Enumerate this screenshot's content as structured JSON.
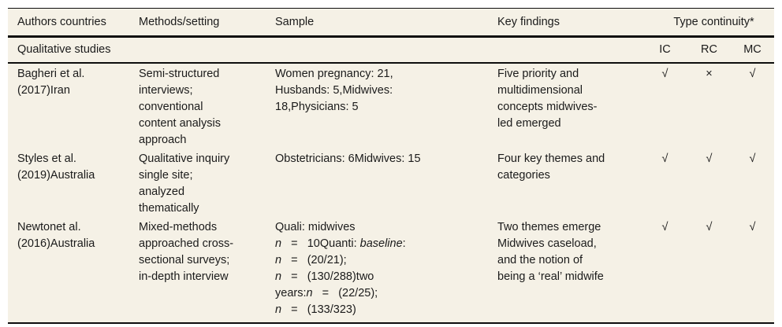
{
  "table": {
    "header": {
      "authors": "Authors countries",
      "methods": "Methods/setting",
      "sample": "Sample",
      "findings": "Key findings",
      "continuity_group": "Type continuity*"
    },
    "subheader": {
      "section_label": "Qualitative studies",
      "ic": "IC",
      "rc": "RC",
      "mc": "MC"
    },
    "rows": [
      {
        "authors": "Bagheri et al.\n(2017)Iran",
        "methods": "Semi-structured\ninterviews;\nconventional\ncontent analysis\napproach",
        "sample": "Women pregnancy: 21,\nHusbands: 5,Midwives:\n18,Physicians: 5",
        "findings": "Five priority and\nmultidimensional\nconcepts midwives-\nled emerged",
        "ic": "√",
        "rc": "×",
        "mc": "√"
      },
      {
        "authors": "Styles et al.\n(2019)Australia",
        "methods": "Qualitative inquiry\nsingle site;\nanalyzed\nthematically",
        "sample": "Obstetricians: 6Midwives: 15",
        "findings": "Four key themes and\ncategories",
        "ic": "√",
        "rc": "√",
        "mc": "√"
      },
      {
        "authors": "Newtonet al.\n(2016)Australia",
        "methods": "Mixed-methods\napproached cross-\nsectional surveys;\nin-depth interview",
        "sample_runs": [
          {
            "t": "Quali: midwives\n"
          },
          {
            "t": "n",
            "i": true
          },
          {
            "t": "   =   10Quanti: "
          },
          {
            "t": "baseline",
            "i": true
          },
          {
            "t": ":\n"
          },
          {
            "t": "n",
            "i": true
          },
          {
            "t": "   =   (20/21);\n"
          },
          {
            "t": "n",
            "i": true
          },
          {
            "t": "   =   (130/288)two\nyears:"
          },
          {
            "t": "n",
            "i": true
          },
          {
            "t": "   =   (22/25);\n"
          },
          {
            "t": "n",
            "i": true
          },
          {
            "t": "   =   (133/323)"
          }
        ],
        "findings": "Two themes emerge\nMidwives caseload,\nand the notion of\nbeing a ‘real’ midwife",
        "ic": "√",
        "rc": "√",
        "mc": "√"
      }
    ],
    "colors": {
      "table_background": "#f5f1e6",
      "rule_color": "#0d0d0d",
      "text_color": "#1b1b1b"
    }
  }
}
